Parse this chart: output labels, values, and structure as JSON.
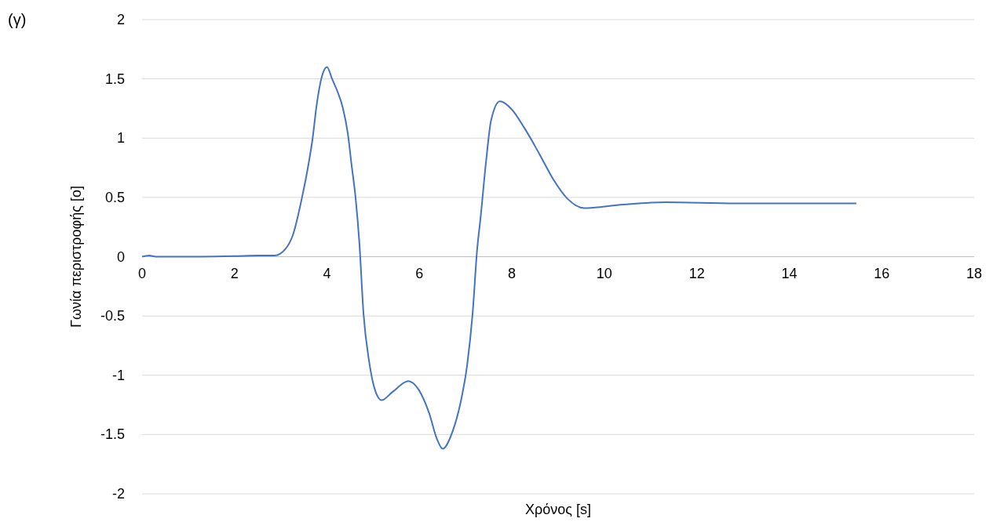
{
  "chart_data": {
    "type": "line",
    "xlabel": "Χρόνος [s]",
    "ylabel": "Γωνία περιστροφής [o]",
    "annotations": [
      "(γ)"
    ],
    "xlim": [
      0,
      18
    ],
    "xticks": [
      0,
      2,
      4,
      6,
      8,
      10,
      12,
      14,
      16,
      18
    ],
    "ylim": [
      -2,
      2
    ],
    "yticks": [
      -2,
      -1.5,
      -1,
      -0.5,
      0,
      0.5,
      1,
      1.5,
      2
    ],
    "grid": "y",
    "series": [
      {
        "color": "#4472c4",
        "x": [
          0,
          0.15,
          0.3,
          1,
          2,
          2.53,
          2.87,
          3.09,
          3.26,
          3.46,
          3.6,
          3.69,
          3.77,
          3.89,
          4.0,
          4.11,
          4.23,
          4.34,
          4.45,
          4.53,
          4.62,
          4.7,
          4.79,
          4.91,
          5.02,
          5.18,
          5.42,
          5.76,
          5.98,
          6.21,
          6.38,
          6.5,
          6.72,
          6.89,
          7.03,
          7.15,
          7.25,
          7.32,
          7.44,
          7.55,
          7.74,
          7.98,
          8.28,
          8.59,
          8.9,
          9.2,
          9.56,
          10.41,
          11.32,
          12.84,
          15.45
        ],
        "values": [
          0,
          0.01,
          0,
          0,
          0.005,
          0.01,
          0.01,
          0.06,
          0.18,
          0.5,
          0.78,
          1.0,
          1.26,
          1.52,
          1.6,
          1.5,
          1.39,
          1.26,
          1.04,
          0.78,
          0.49,
          0.12,
          -0.48,
          -0.88,
          -1.1,
          -1.21,
          -1.14,
          -1.05,
          -1.12,
          -1.32,
          -1.54,
          -1.62,
          -1.47,
          -1.23,
          -0.92,
          -0.48,
          0.07,
          0.32,
          0.8,
          1.15,
          1.31,
          1.25,
          1.08,
          0.87,
          0.65,
          0.49,
          0.41,
          0.44,
          0.46,
          0.45,
          0.45
        ]
      }
    ]
  }
}
